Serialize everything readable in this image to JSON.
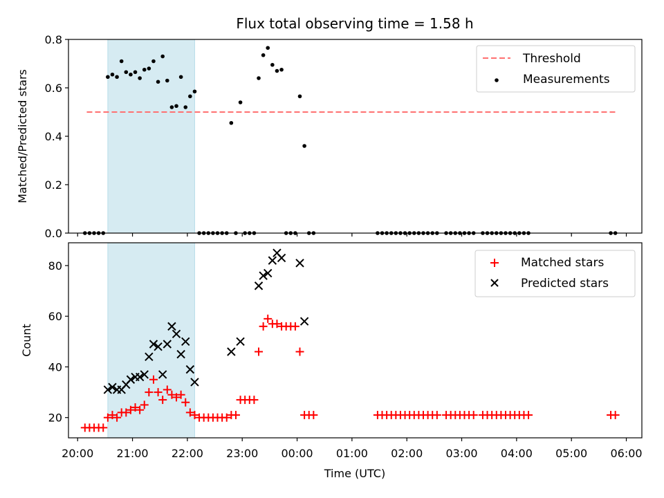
{
  "chart_data": [
    {
      "type": "scatter",
      "title": "Flux total observing time = 1.58 h",
      "xlabel": "",
      "ylabel": "Matched/Predicted stars",
      "xlim": [
        "19:50",
        "06:17"
      ],
      "ylim": [
        0,
        0.8
      ],
      "yticks": [
        "0.0",
        "0.2",
        "0.4",
        "0.6",
        "0.8"
      ],
      "shaded_span": [
        "20:33",
        "22:08"
      ],
      "threshold": {
        "name": "Threshold",
        "value": 0.5,
        "x": [
          "20:10",
          "05:48"
        ],
        "color": "#ff7070",
        "style": "dashed"
      },
      "legend": {
        "placement": "top-right",
        "entries": [
          "Threshold",
          "Measurements"
        ]
      },
      "series": [
        {
          "name": "Measurements",
          "color": "#000000",
          "marker": "dot",
          "points": [
            [
              "20:08",
              0.0
            ],
            [
              "20:13",
              0.0
            ],
            [
              "20:18",
              0.0
            ],
            [
              "20:23",
              0.0
            ],
            [
              "20:28",
              0.0
            ],
            [
              "20:33",
              0.645
            ],
            [
              "20:38",
              0.655
            ],
            [
              "20:43",
              0.645
            ],
            [
              "20:48",
              0.71
            ],
            [
              "20:53",
              0.665
            ],
            [
              "20:58",
              0.655
            ],
            [
              "21:03",
              0.665
            ],
            [
              "21:08",
              0.64
            ],
            [
              "21:13",
              0.675
            ],
            [
              "21:18",
              0.68
            ],
            [
              "21:23",
              0.71
            ],
            [
              "21:28",
              0.625
            ],
            [
              "21:33",
              0.73
            ],
            [
              "21:38",
              0.63
            ],
            [
              "21:43",
              0.52
            ],
            [
              "21:48",
              0.525
            ],
            [
              "21:53",
              0.645
            ],
            [
              "21:58",
              0.52
            ],
            [
              "22:03",
              0.565
            ],
            [
              "22:08",
              0.585
            ],
            [
              "22:13",
              0.0
            ],
            [
              "22:18",
              0.0
            ],
            [
              "22:23",
              0.0
            ],
            [
              "22:28",
              0.0
            ],
            [
              "22:33",
              0.0
            ],
            [
              "22:38",
              0.0
            ],
            [
              "22:43",
              0.0
            ],
            [
              "22:48",
              0.455
            ],
            [
              "22:53",
              0.0
            ],
            [
              "22:58",
              0.54
            ],
            [
              "23:03",
              0.0
            ],
            [
              "23:08",
              0.0
            ],
            [
              "23:13",
              0.0
            ],
            [
              "23:18",
              0.64
            ],
            [
              "23:23",
              0.735
            ],
            [
              "23:28",
              0.765
            ],
            [
              "23:33",
              0.695
            ],
            [
              "23:38",
              0.67
            ],
            [
              "23:43",
              0.675
            ],
            [
              "23:48",
              0.0
            ],
            [
              "23:53",
              0.0
            ],
            [
              "23:58",
              0.0
            ],
            [
              "00:03",
              0.565
            ],
            [
              "00:08",
              0.36
            ],
            [
              "00:13",
              0.0
            ],
            [
              "00:18",
              0.0
            ],
            [
              "01:28",
              0.0
            ],
            [
              "01:33",
              0.0
            ],
            [
              "01:38",
              0.0
            ],
            [
              "01:43",
              0.0
            ],
            [
              "01:48",
              0.0
            ],
            [
              "01:53",
              0.0
            ],
            [
              "01:58",
              0.0
            ],
            [
              "02:03",
              0.0
            ],
            [
              "02:08",
              0.0
            ],
            [
              "02:13",
              0.0
            ],
            [
              "02:18",
              0.0
            ],
            [
              "02:23",
              0.0
            ],
            [
              "02:28",
              0.0
            ],
            [
              "02:33",
              0.0
            ],
            [
              "02:43",
              0.0
            ],
            [
              "02:48",
              0.0
            ],
            [
              "02:53",
              0.0
            ],
            [
              "02:58",
              0.0
            ],
            [
              "03:03",
              0.0
            ],
            [
              "03:08",
              0.0
            ],
            [
              "03:13",
              0.0
            ],
            [
              "03:23",
              0.0
            ],
            [
              "03:28",
              0.0
            ],
            [
              "03:33",
              0.0
            ],
            [
              "03:38",
              0.0
            ],
            [
              "03:43",
              0.0
            ],
            [
              "03:48",
              0.0
            ],
            [
              "03:53",
              0.0
            ],
            [
              "03:58",
              0.0
            ],
            [
              "04:03",
              0.0
            ],
            [
              "04:08",
              0.0
            ],
            [
              "04:13",
              0.0
            ],
            [
              "05:43",
              0.0
            ],
            [
              "05:48",
              0.0
            ]
          ]
        }
      ]
    },
    {
      "type": "scatter",
      "title": "",
      "xlabel": "Time (UTC)",
      "ylabel": "Count",
      "xlim": [
        "19:50",
        "06:17"
      ],
      "ylim": [
        12,
        89
      ],
      "yticks": [
        "20",
        "40",
        "60",
        "80"
      ],
      "xticks": [
        "20:00",
        "21:00",
        "22:00",
        "23:00",
        "00:00",
        "01:00",
        "02:00",
        "03:00",
        "04:00",
        "05:00",
        "06:00"
      ],
      "shaded_span": [
        "20:33",
        "22:08"
      ],
      "legend": {
        "placement": "top-right",
        "entries": [
          "Matched stars",
          "Predicted stars"
        ]
      },
      "series": [
        {
          "name": "Matched stars",
          "color": "#ff0000",
          "marker": "plus",
          "points": [
            [
              "20:08",
              16
            ],
            [
              "20:13",
              16
            ],
            [
              "20:18",
              16
            ],
            [
              "20:23",
              16
            ],
            [
              "20:28",
              16
            ],
            [
              "20:33",
              20
            ],
            [
              "20:38",
              21
            ],
            [
              "20:43",
              20
            ],
            [
              "20:48",
              22
            ],
            [
              "20:53",
              22
            ],
            [
              "20:58",
              23
            ],
            [
              "21:03",
              24
            ],
            [
              "21:08",
              23
            ],
            [
              "21:13",
              25
            ],
            [
              "21:18",
              30
            ],
            [
              "21:23",
              35
            ],
            [
              "21:28",
              30
            ],
            [
              "21:33",
              27
            ],
            [
              "21:38",
              31
            ],
            [
              "21:43",
              29
            ],
            [
              "21:48",
              28
            ],
            [
              "21:53",
              29
            ],
            [
              "21:58",
              26
            ],
            [
              "22:03",
              22
            ],
            [
              "22:08",
              21
            ],
            [
              "22:13",
              20
            ],
            [
              "22:18",
              20
            ],
            [
              "22:23",
              20
            ],
            [
              "22:28",
              20
            ],
            [
              "22:33",
              20
            ],
            [
              "22:38",
              20
            ],
            [
              "22:43",
              20
            ],
            [
              "22:48",
              21
            ],
            [
              "22:53",
              21
            ],
            [
              "22:58",
              27
            ],
            [
              "23:03",
              27
            ],
            [
              "23:08",
              27
            ],
            [
              "23:13",
              27
            ],
            [
              "23:18",
              46
            ],
            [
              "23:23",
              56
            ],
            [
              "23:28",
              59
            ],
            [
              "23:33",
              57
            ],
            [
              "23:38",
              57
            ],
            [
              "23:43",
              56
            ],
            [
              "23:48",
              56
            ],
            [
              "23:53",
              56
            ],
            [
              "23:58",
              56
            ],
            [
              "00:03",
              46
            ],
            [
              "00:08",
              21
            ],
            [
              "00:13",
              21
            ],
            [
              "00:18",
              21
            ],
            [
              "01:28",
              21
            ],
            [
              "01:33",
              21
            ],
            [
              "01:38",
              21
            ],
            [
              "01:43",
              21
            ],
            [
              "01:48",
              21
            ],
            [
              "01:53",
              21
            ],
            [
              "01:58",
              21
            ],
            [
              "02:03",
              21
            ],
            [
              "02:08",
              21
            ],
            [
              "02:13",
              21
            ],
            [
              "02:18",
              21
            ],
            [
              "02:23",
              21
            ],
            [
              "02:28",
              21
            ],
            [
              "02:33",
              21
            ],
            [
              "02:43",
              21
            ],
            [
              "02:48",
              21
            ],
            [
              "02:53",
              21
            ],
            [
              "02:58",
              21
            ],
            [
              "03:03",
              21
            ],
            [
              "03:08",
              21
            ],
            [
              "03:13",
              21
            ],
            [
              "03:23",
              21
            ],
            [
              "03:28",
              21
            ],
            [
              "03:33",
              21
            ],
            [
              "03:38",
              21
            ],
            [
              "03:43",
              21
            ],
            [
              "03:48",
              21
            ],
            [
              "03:53",
              21
            ],
            [
              "03:58",
              21
            ],
            [
              "04:03",
              21
            ],
            [
              "04:08",
              21
            ],
            [
              "04:13",
              21
            ],
            [
              "05:43",
              21
            ],
            [
              "05:48",
              21
            ]
          ]
        },
        {
          "name": "Predicted stars",
          "color": "#000000",
          "marker": "x",
          "points": [
            [
              "20:33",
              31
            ],
            [
              "20:38",
              32
            ],
            [
              "20:43",
              31
            ],
            [
              "20:48",
              31
            ],
            [
              "20:53",
              33
            ],
            [
              "20:58",
              35
            ],
            [
              "21:03",
              36
            ],
            [
              "21:08",
              36
            ],
            [
              "21:13",
              37
            ],
            [
              "21:18",
              44
            ],
            [
              "21:23",
              49
            ],
            [
              "21:28",
              48
            ],
            [
              "21:33",
              37
            ],
            [
              "21:38",
              49
            ],
            [
              "21:43",
              56
            ],
            [
              "21:48",
              53
            ],
            [
              "21:53",
              45
            ],
            [
              "21:58",
              50
            ],
            [
              "22:03",
              39
            ],
            [
              "22:08",
              34
            ],
            [
              "22:48",
              46
            ],
            [
              "22:58",
              50
            ],
            [
              "23:18",
              72
            ],
            [
              "23:23",
              76
            ],
            [
              "23:28",
              77
            ],
            [
              "23:33",
              82
            ],
            [
              "23:38",
              85
            ],
            [
              "23:43",
              83
            ],
            [
              "24:03",
              81
            ],
            [
              "24:08",
              58
            ]
          ]
        }
      ]
    }
  ]
}
